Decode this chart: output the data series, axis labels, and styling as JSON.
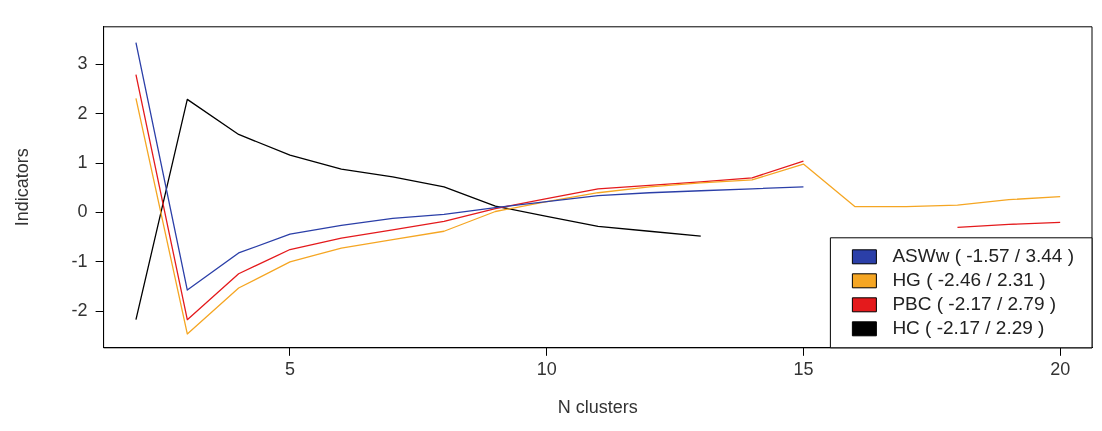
{
  "chart_data": {
    "type": "line",
    "xlabel": "N clusters",
    "ylabel": "Indicators",
    "x": [
      2,
      3,
      4,
      5,
      6,
      7,
      8,
      9,
      10,
      11,
      12,
      13,
      14,
      15,
      16,
      17,
      18,
      19,
      20
    ],
    "series": [
      {
        "name": "ASWw ( -1.57 / 3.44 )",
        "color": "#2b3fa8",
        "values": [
          3.44,
          -1.57,
          -0.82,
          -0.44,
          -0.26,
          -0.12,
          -0.04,
          0.1,
          0.22,
          0.34,
          0.4,
          0.44,
          0.48,
          0.52,
          null,
          null,
          null,
          null,
          null
        ]
      },
      {
        "name": "HG ( -2.46 / 2.31 )",
        "color": "#f5a623",
        "values": [
          2.31,
          -2.46,
          -1.53,
          -1.0,
          -0.72,
          -0.55,
          -0.38,
          0.02,
          0.22,
          0.4,
          0.52,
          0.6,
          0.66,
          0.98,
          0.12,
          0.12,
          0.15,
          0.26,
          0.32
        ]
      },
      {
        "name": "PBC ( -2.17 / 2.79 )",
        "color": "#e41a1c",
        "values": [
          2.79,
          -2.17,
          -1.24,
          -0.75,
          -0.52,
          -0.35,
          -0.18,
          0.08,
          0.28,
          0.48,
          0.55,
          0.62,
          0.7,
          1.04,
          null,
          null,
          -0.3,
          -0.24,
          -0.2
        ]
      },
      {
        "name": "HC ( -2.17 / 2.29 )",
        "color": "#000000",
        "values": [
          -2.17,
          2.29,
          1.58,
          1.16,
          0.88,
          0.72,
          0.52,
          0.13,
          -0.08,
          -0.28,
          -0.38,
          -0.48,
          null,
          null,
          null,
          null,
          null,
          null,
          null
        ]
      }
    ],
    "xlim": [
      1.37,
      20.62
    ],
    "xticks": [
      5,
      10,
      15,
      20
    ],
    "ylim": [
      -2.74,
      3.76
    ],
    "yticks": [
      -2,
      -1,
      0,
      1,
      2,
      3
    ],
    "grid": false,
    "legend": "bottom right",
    "marker": "none",
    "line_style": "solid"
  }
}
